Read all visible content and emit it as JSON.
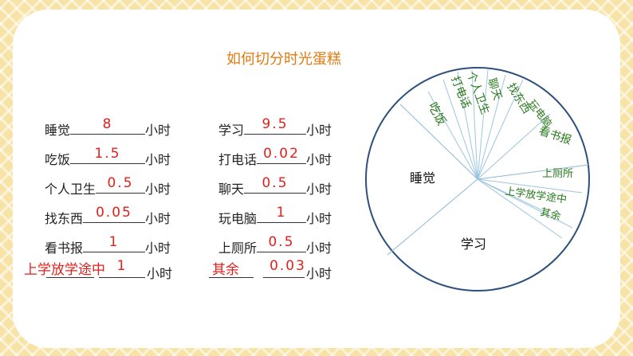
{
  "title": "如何切分时光蛋糕",
  "unit": "小时",
  "rows": [
    {
      "left": {
        "label": "睡觉",
        "value": "8"
      },
      "right": {
        "label": "学习",
        "value": "9.5"
      }
    },
    {
      "left": {
        "label": "吃饭",
        "value": "1.5"
      },
      "right": {
        "label": "打电话",
        "value": "0.02"
      }
    },
    {
      "left": {
        "label": "个人卫生",
        "value": "0.5"
      },
      "right": {
        "label": "聊天",
        "value": "0.5"
      }
    },
    {
      "left": {
        "label": "找东西",
        "value": "0.05"
      },
      "right": {
        "label": "玩电脑",
        "value": "1"
      }
    },
    {
      "left": {
        "label": "看书报",
        "value": "1"
      },
      "right": {
        "label": "上厕所",
        "value": "0.5"
      }
    },
    {
      "left": {
        "label": "上学放学途中",
        "value": "1"
      },
      "right": {
        "label": "其余",
        "value": "0.03"
      }
    }
  ],
  "pie": {
    "labels": {
      "sleep": "睡觉",
      "study": "学习",
      "eat": "吃饭",
      "hygiene": "个人卫生",
      "phone": "打电话",
      "chat": "聊天",
      "find": "找东西",
      "computer": "玩电脑",
      "read": "看书报",
      "toilet": "上厕所",
      "commute": "上学放学途中",
      "other": "其余"
    },
    "colors": {
      "big_label": "#111111",
      "small_label": "#2a7a1c",
      "outline": "#2c4f7c",
      "divider": "#8ab8d8"
    }
  }
}
